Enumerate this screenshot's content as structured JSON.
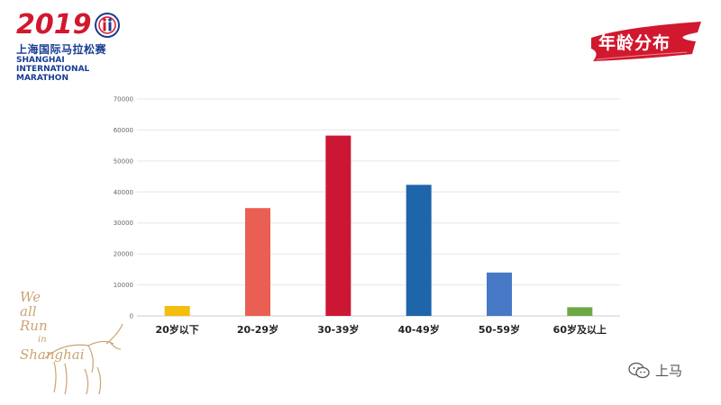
{
  "logo": {
    "year": "2019",
    "cn_name": "上海国际马拉松赛",
    "en_line1": "SHANGHAI",
    "en_line2": "INTERNATIONAL",
    "en_line3": "MARATHON"
  },
  "title_banner": {
    "text": "年龄分布"
  },
  "decor_text": {
    "line1": "We",
    "line2": "all",
    "line3": "Run",
    "line4": "in",
    "line5": "Shanghai"
  },
  "watermark": {
    "text": "上马",
    "icon": "wechat-icon"
  },
  "colors": {
    "brand_red": "#d1182f",
    "brand_blue": "#173d8f"
  },
  "chart_data": {
    "type": "bar",
    "title": "",
    "xlabel": "",
    "ylabel": "",
    "categories": [
      "20岁以下",
      "20-29岁",
      "30-39岁",
      "40-49岁",
      "50-59岁",
      "60岁及以上"
    ],
    "values": [
      3200,
      34800,
      58200,
      42300,
      14000,
      2800
    ],
    "colors": [
      "#f4be0e",
      "#ea5f53",
      "#cc1734",
      "#1e65aa",
      "#4678c6",
      "#6ca844"
    ],
    "ylim": [
      0,
      70000
    ],
    "yticks": [
      0,
      10000,
      20000,
      30000,
      40000,
      50000,
      60000,
      70000
    ],
    "grid": true,
    "legend": "none"
  }
}
